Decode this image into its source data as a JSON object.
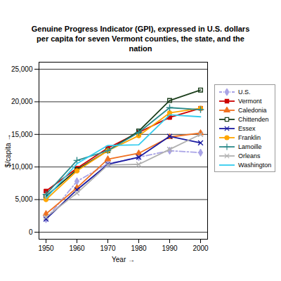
{
  "chart_data": {
    "type": "line",
    "title": "Genuine Progress Indicator (GPI), expressed in U.S. dollars per capita for seven Vermont counties, the state, and the nation",
    "x_label": "Year",
    "y_label": "$/capita",
    "x": [
      1950,
      1960,
      1970,
      1980,
      1990,
      2000
    ],
    "xlim": [
      1950,
      2000
    ],
    "xticks": [
      1950,
      1960,
      1970,
      1980,
      1990,
      2000
    ],
    "ylim": [
      0,
      25000
    ],
    "yticks": [
      0,
      {
        "value": 5000,
        "label": "5,000"
      },
      {
        "value": 10000,
        "label": "10,000"
      },
      {
        "value": 15000,
        "label": "15,000"
      },
      {
        "value": 20000,
        "label": "20,000"
      },
      {
        "value": 25000,
        "label": "25,000"
      }
    ],
    "grid": true,
    "legend": "right",
    "series": [
      {
        "name": "U.S.",
        "color": "#a9a3e6",
        "marker": "diamond",
        "line_style": "dashdot",
        "values": [
          2000,
          7800,
          10500,
          11500,
          12500,
          12200
        ]
      },
      {
        "name": "Vermont",
        "color": "#cc0000",
        "marker": "square",
        "line_style": "solid",
        "values": [
          6300,
          9800,
          12900,
          15300,
          17600,
          19000
        ]
      },
      {
        "name": "Caledonia",
        "color": "#f07020",
        "marker": "triangle",
        "line_style": "solid",
        "values": [
          2800,
          6800,
          11200,
          12100,
          14600,
          15200
        ]
      },
      {
        "name": "Chittenden",
        "color": "#1a3d1a",
        "marker": "square-open",
        "line_style": "solid",
        "values": [
          5500,
          9600,
          12500,
          15500,
          20200,
          21800
        ]
      },
      {
        "name": "Essex",
        "color": "#1a1aa0",
        "marker": "times",
        "line_style": "solid",
        "values": [
          2000,
          6500,
          10400,
          11500,
          14700,
          13700
        ]
      },
      {
        "name": "Franklin",
        "color": "#ffa500",
        "marker": "circle",
        "line_style": "solid",
        "values": [
          5000,
          9400,
          12500,
          14800,
          18300,
          19000
        ]
      },
      {
        "name": "Lamoille",
        "color": "#2e8b8b",
        "marker": "plus",
        "line_style": "solid",
        "values": [
          5800,
          11000,
          12500,
          15300,
          19100,
          18800
        ]
      },
      {
        "name": "Orleans",
        "color": "#b0b0b0",
        "marker": "times",
        "line_style": "solid",
        "values": [
          2300,
          6000,
          10300,
          10400,
          12700,
          15000
        ]
      },
      {
        "name": "Washington",
        "color": "#33ccee",
        "marker": "none",
        "line_style": "solid",
        "values": [
          5200,
          10500,
          13300,
          13400,
          18000,
          17700
        ]
      }
    ]
  }
}
